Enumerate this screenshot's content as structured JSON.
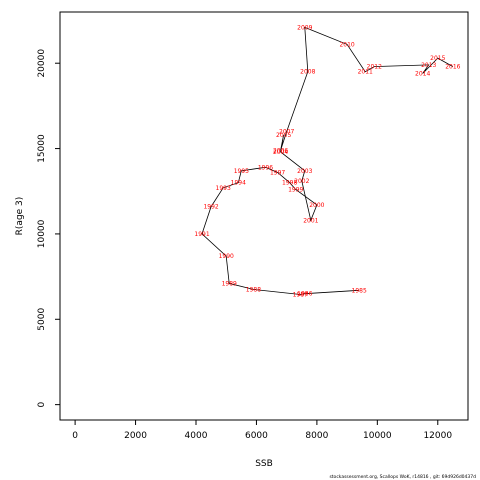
{
  "chart_data": {
    "type": "line",
    "xlabel": "SSB",
    "ylabel": "R(age 3)",
    "xlim": [
      -500,
      13000
    ],
    "ylim": [
      -900,
      23000
    ],
    "x_ticks": [
      0,
      2000,
      4000,
      6000,
      8000,
      10000,
      12000
    ],
    "y_ticks": [
      0,
      5000,
      10000,
      15000,
      20000
    ],
    "grid": false,
    "line_color": "#000000",
    "label_color": "#ff0000",
    "points": [
      {
        "year": "1985",
        "x": 9400,
        "y": 6700
      },
      {
        "year": "1986",
        "x": 7600,
        "y": 6500
      },
      {
        "year": "1987",
        "x": 7450,
        "y": 6450
      },
      {
        "year": "1988",
        "x": 5900,
        "y": 6750
      },
      {
        "year": "1989",
        "x": 5100,
        "y": 7100
      },
      {
        "year": "1990",
        "x": 5000,
        "y": 8700
      },
      {
        "year": "1991",
        "x": 4200,
        "y": 10000
      },
      {
        "year": "1992",
        "x": 4500,
        "y": 11600
      },
      {
        "year": "1993",
        "x": 4900,
        "y": 12700
      },
      {
        "year": "1994",
        "x": 5400,
        "y": 13000
      },
      {
        "year": "1995",
        "x": 5500,
        "y": 13700
      },
      {
        "year": "1996",
        "x": 6300,
        "y": 13900
      },
      {
        "year": "1997",
        "x": 6700,
        "y": 13600
      },
      {
        "year": "1998",
        "x": 7100,
        "y": 13000
      },
      {
        "year": "1999",
        "x": 7300,
        "y": 12600
      },
      {
        "year": "2000",
        "x": 8000,
        "y": 11700
      },
      {
        "year": "2001",
        "x": 7800,
        "y": 10800
      },
      {
        "year": "2002",
        "x": 7500,
        "y": 13100
      },
      {
        "year": "2003",
        "x": 7600,
        "y": 13700
      },
      {
        "year": "2004",
        "x": 6800,
        "y": 14800
      },
      {
        "year": "2005",
        "x": 6900,
        "y": 15800
      },
      {
        "year": "2006",
        "x": 6800,
        "y": 14900
      },
      {
        "year": "2007",
        "x": 7000,
        "y": 16000
      },
      {
        "year": "2008",
        "x": 7700,
        "y": 19500
      },
      {
        "year": "2009",
        "x": 7600,
        "y": 22100
      },
      {
        "year": "2010",
        "x": 9000,
        "y": 21100
      },
      {
        "year": "2011",
        "x": 9600,
        "y": 19500
      },
      {
        "year": "2012",
        "x": 9900,
        "y": 19800
      },
      {
        "year": "2013",
        "x": 11700,
        "y": 19900
      },
      {
        "year": "2014",
        "x": 11500,
        "y": 19400
      },
      {
        "year": "2015",
        "x": 12000,
        "y": 20300
      },
      {
        "year": "2016",
        "x": 12500,
        "y": 19800
      }
    ]
  },
  "footer": "stockassessment.org, Scallops WoK, r14816 , git: 69d926d0437d"
}
